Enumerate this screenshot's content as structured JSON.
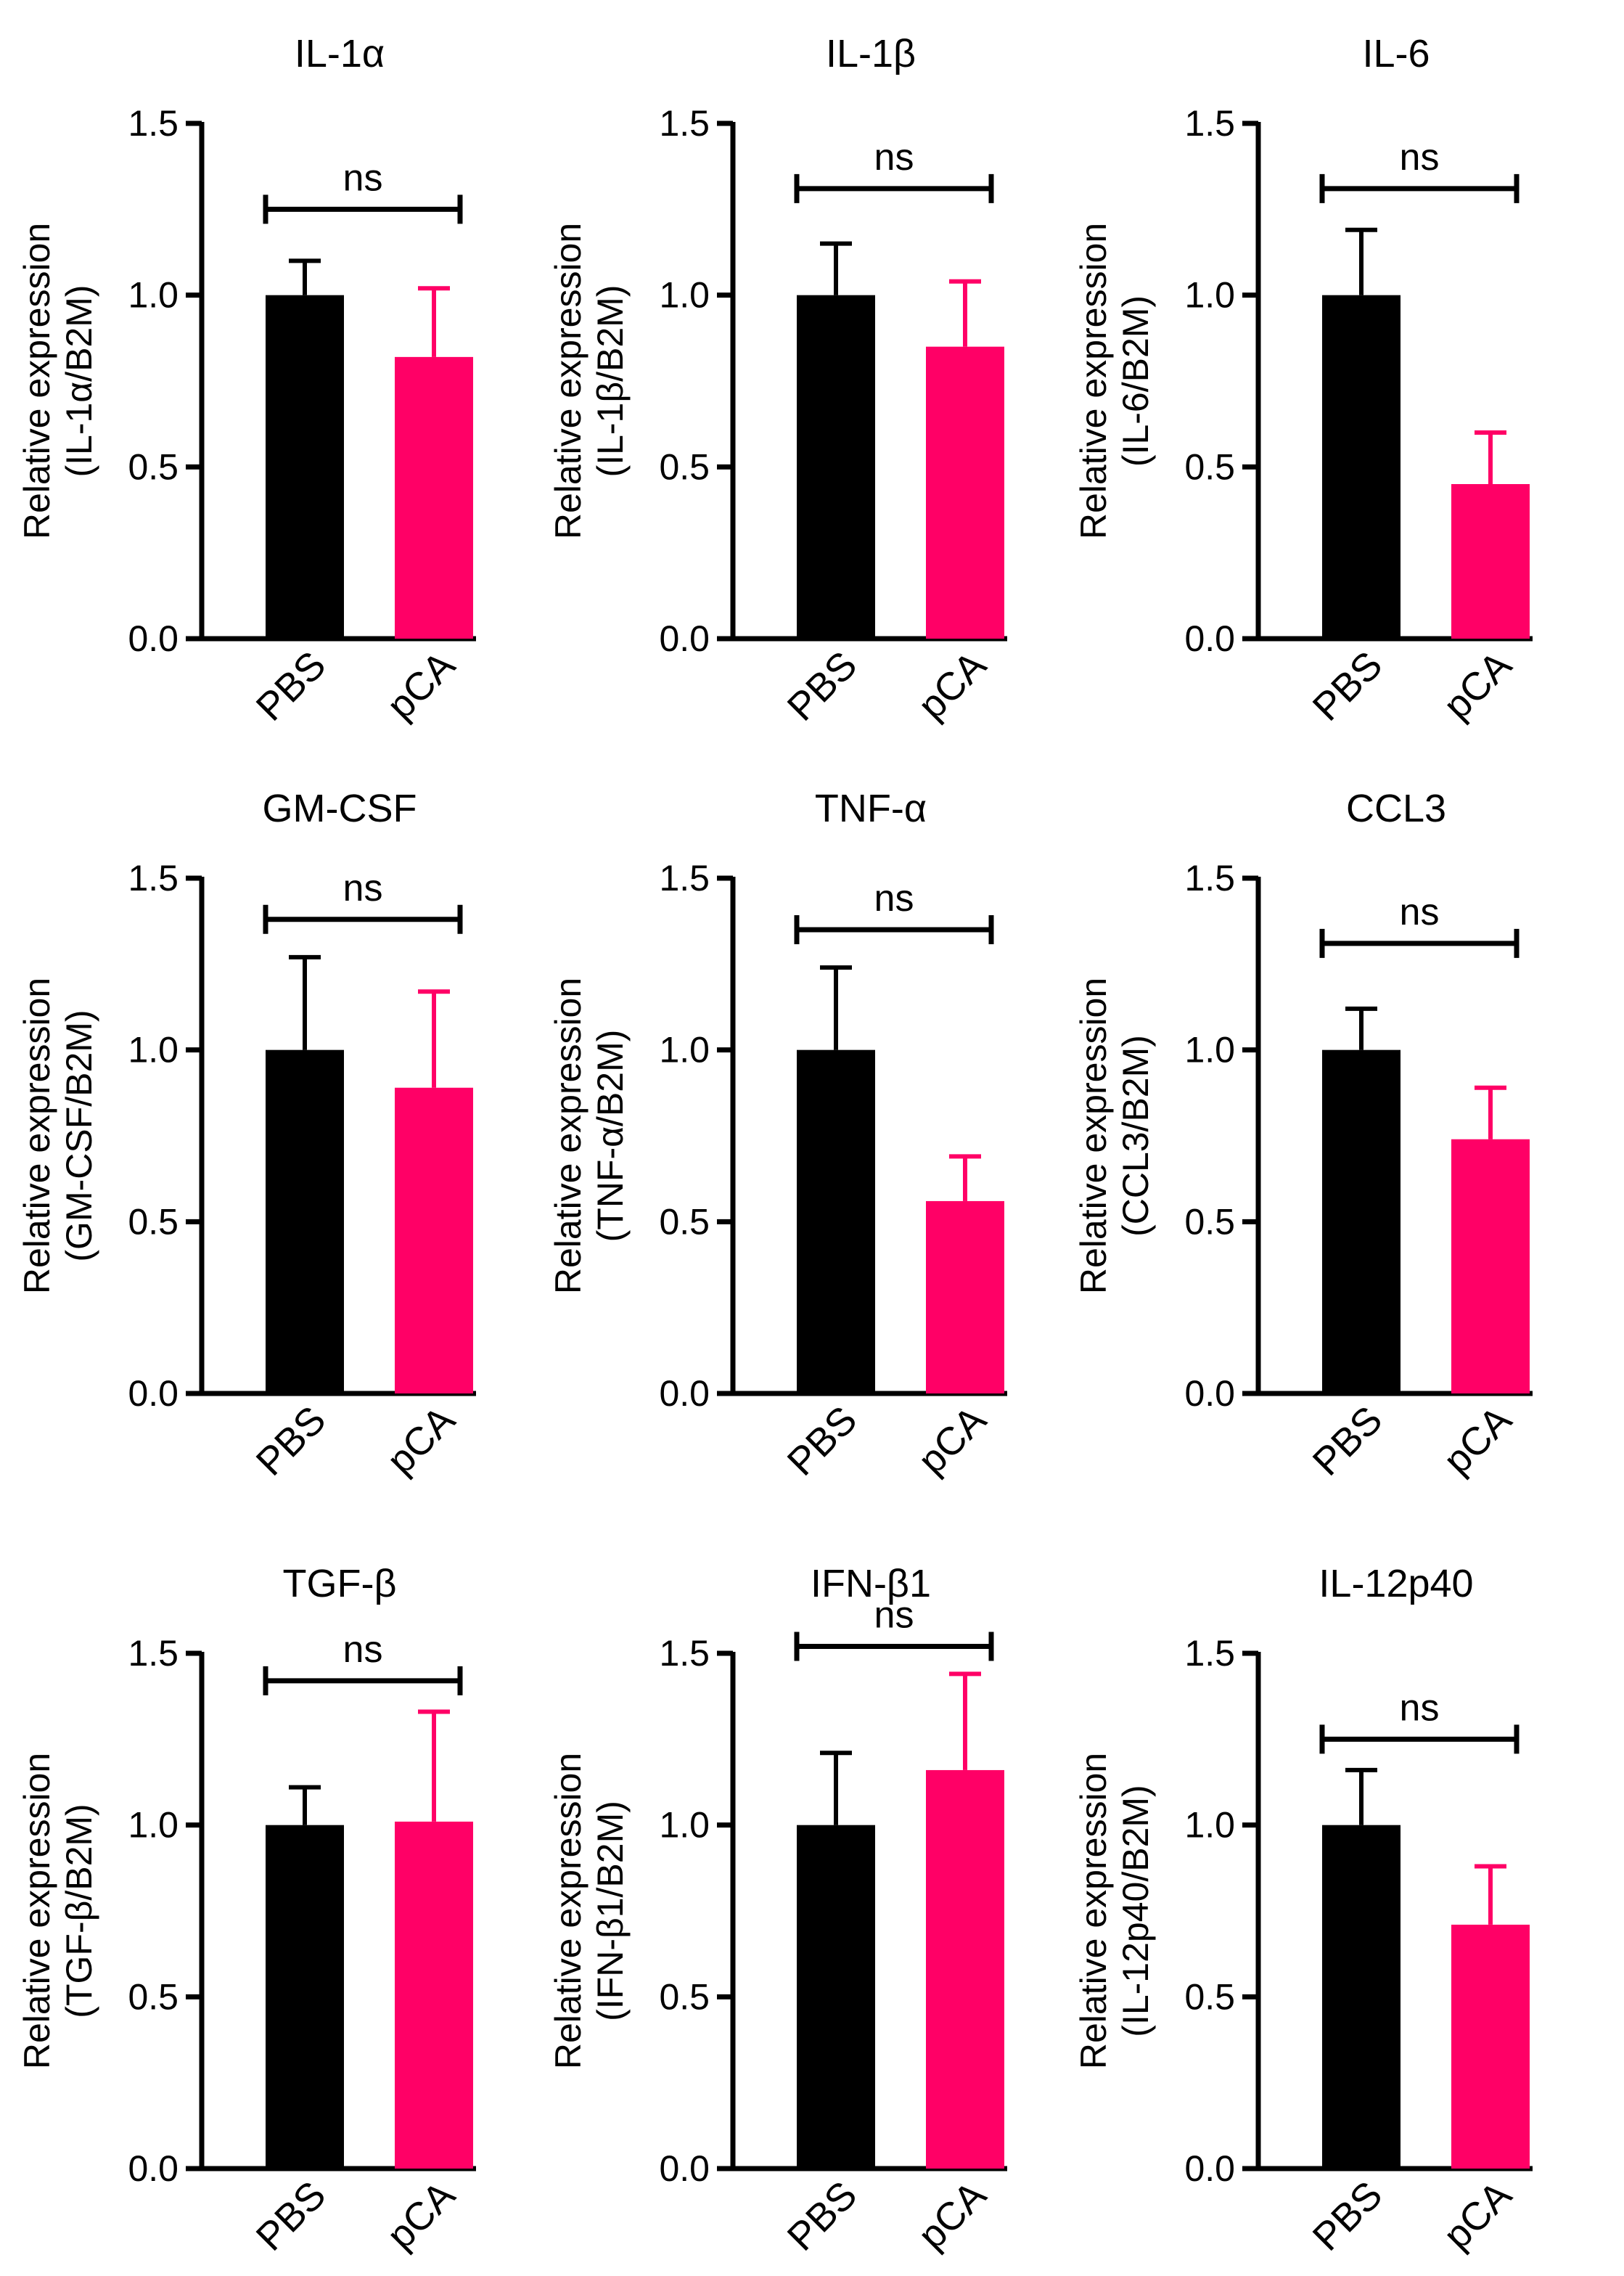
{
  "figure": {
    "background": "#ffffff"
  },
  "colors": {
    "PBS": "#000000",
    "pCA": "#ff0066",
    "axis": "#000000"
  },
  "chart_data": [
    {
      "type": "bar",
      "title": "IL-1α",
      "ylabel": [
        "Relative expression",
        "(IL-1α/B2M)"
      ],
      "categories": [
        "PBS",
        "pCA"
      ],
      "values": [
        1.0,
        0.82
      ],
      "errors": [
        0.1,
        0.2
      ],
      "ylim": [
        0,
        1.5
      ],
      "yticks": [
        "0.0",
        "0.5",
        "1.0",
        "1.5"
      ],
      "significance": {
        "label": "ns",
        "y": 1.25,
        "label_y": 1.33
      }
    },
    {
      "type": "bar",
      "title": "IL-1β",
      "ylabel": [
        "Relative expression",
        "(IL-1β/B2M)"
      ],
      "categories": [
        "PBS",
        "pCA"
      ],
      "values": [
        1.0,
        0.85
      ],
      "errors": [
        0.15,
        0.19
      ],
      "ylim": [
        0,
        1.5
      ],
      "yticks": [
        "0.0",
        "0.5",
        "1.0",
        "1.5"
      ],
      "significance": {
        "label": "ns",
        "y": 1.31,
        "label_y": 1.39
      }
    },
    {
      "type": "bar",
      "title": "IL-6",
      "ylabel": [
        "Relative expression",
        "(IL-6/B2M)"
      ],
      "categories": [
        "PBS",
        "pCA"
      ],
      "values": [
        1.0,
        0.45
      ],
      "errors": [
        0.19,
        0.15
      ],
      "ylim": [
        0,
        1.5
      ],
      "yticks": [
        "0.0",
        "0.5",
        "1.0",
        "1.5"
      ],
      "significance": {
        "label": "ns",
        "y": 1.31,
        "label_y": 1.39
      }
    },
    {
      "type": "bar",
      "title": "GM-CSF",
      "ylabel": [
        "Relative expression",
        "(GM-CSF/B2M)"
      ],
      "categories": [
        "PBS",
        "pCA"
      ],
      "values": [
        1.0,
        0.89
      ],
      "errors": [
        0.27,
        0.28
      ],
      "ylim": [
        0,
        1.5
      ],
      "yticks": [
        "0.0",
        "0.5",
        "1.0",
        "1.5"
      ],
      "significance": {
        "label": "ns",
        "y": 1.38,
        "label_y": 1.46
      }
    },
    {
      "type": "bar",
      "title": "TNF-α",
      "ylabel": [
        "Relative expression",
        "(TNF-α/B2M)"
      ],
      "categories": [
        "PBS",
        "pCA"
      ],
      "values": [
        1.0,
        0.56
      ],
      "errors": [
        0.24,
        0.13
      ],
      "ylim": [
        0,
        1.5
      ],
      "yticks": [
        "0.0",
        "0.5",
        "1.0",
        "1.5"
      ],
      "significance": {
        "label": "ns",
        "y": 1.35,
        "label_y": 1.43
      }
    },
    {
      "type": "bar",
      "title": "CCL3",
      "ylabel": [
        "Relative expression",
        "(CCL3/B2M)"
      ],
      "categories": [
        "PBS",
        "pCA"
      ],
      "values": [
        1.0,
        0.74
      ],
      "errors": [
        0.12,
        0.15
      ],
      "ylim": [
        0,
        1.5
      ],
      "yticks": [
        "0.0",
        "0.5",
        "1.0",
        "1.5"
      ],
      "significance": {
        "label": "ns",
        "y": 1.31,
        "label_y": 1.39
      }
    },
    {
      "type": "bar",
      "title": "TGF-β",
      "ylabel": [
        "Relative expression",
        "(TGF-β/B2M)"
      ],
      "categories": [
        "PBS",
        "pCA"
      ],
      "values": [
        1.0,
        1.01
      ],
      "errors": [
        0.11,
        0.32
      ],
      "ylim": [
        0,
        1.5
      ],
      "yticks": [
        "0.0",
        "0.5",
        "1.0",
        "1.5"
      ],
      "significance": {
        "label": "ns",
        "y": 1.42,
        "label_y": 1.5
      }
    },
    {
      "type": "bar",
      "title": "IFN-β1",
      "ylabel": [
        "Relative expression",
        "(IFN-β1/B2M)"
      ],
      "categories": [
        "PBS",
        "pCA"
      ],
      "values": [
        1.0,
        1.16
      ],
      "errors": [
        0.21,
        0.28
      ],
      "ylim": [
        0,
        1.5
      ],
      "yticks": [
        "0.0",
        "0.5",
        "1.0",
        "1.5"
      ],
      "significance": {
        "label": "ns",
        "y": 1.52,
        "label_y": 1.6
      }
    },
    {
      "type": "bar",
      "title": "IL-12p40",
      "ylabel": [
        "Relative expression",
        "(IL-12p40/B2M)"
      ],
      "categories": [
        "PBS",
        "pCA"
      ],
      "values": [
        1.0,
        0.71
      ],
      "errors": [
        0.16,
        0.17
      ],
      "ylim": [
        0,
        1.5
      ],
      "yticks": [
        "0.0",
        "0.5",
        "1.0",
        "1.5"
      ],
      "significance": {
        "label": "ns",
        "y": 1.25,
        "label_y": 1.33
      }
    }
  ]
}
